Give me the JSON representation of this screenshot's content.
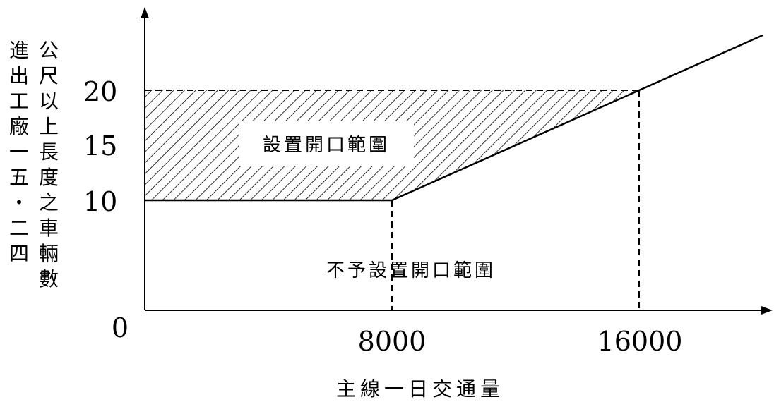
{
  "chart_data": {
    "type": "line",
    "xlabel": "主線一日交通量",
    "ylabel_columns": [
      "公尺以上長度之車輛數",
      "進出工廠一五・二四"
    ],
    "x_ticks": [
      "0",
      "8000",
      "16000"
    ],
    "y_ticks": [
      "10",
      "15",
      "20"
    ],
    "series": [
      {
        "x": [
          0,
          8000,
          16000,
          20000
        ],
        "y": [
          10,
          10,
          20,
          25
        ]
      }
    ],
    "threshold_lines": {
      "horizontal_y": [
        10,
        20
      ],
      "vertical_x": [
        8000,
        16000
      ]
    },
    "regions": [
      {
        "label": "設置開口範圍",
        "hatched": true
      },
      {
        "label": "不予設置開口範圍",
        "hatched": false
      }
    ],
    "xlim": [
      0,
      20000
    ],
    "ylim": [
      0,
      25
    ]
  }
}
